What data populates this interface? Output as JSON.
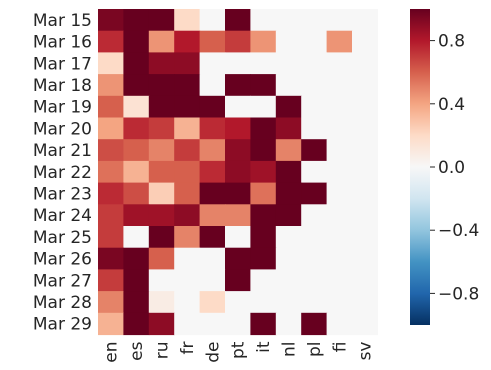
{
  "chart_data": {
    "type": "heatmap",
    "title": "",
    "xlabel": "",
    "ylabel": "",
    "x": [
      "en",
      "es",
      "ru",
      "fr",
      "de",
      "pt",
      "it",
      "nl",
      "pl",
      "fi",
      "sv"
    ],
    "y": [
      "Mar 15",
      "Mar 16",
      "Mar 17",
      "Mar 18",
      "Mar 19",
      "Mar 20",
      "Mar 21",
      "Mar 22",
      "Mar 23",
      "Mar 24",
      "Mar 25",
      "Mar 26",
      "Mar 27",
      "Mar 28",
      "Mar 29"
    ],
    "values": [
      [
        0.95,
        1.0,
        1.0,
        0.2,
        null,
        1.0,
        null,
        null,
        null,
        null,
        null
      ],
      [
        0.75,
        1.0,
        0.45,
        0.8,
        0.6,
        0.7,
        0.45,
        null,
        null,
        0.45,
        null
      ],
      [
        0.2,
        1.0,
        0.9,
        0.9,
        null,
        null,
        null,
        null,
        null,
        null,
        null
      ],
      [
        0.45,
        1.0,
        1.0,
        1.0,
        null,
        1.0,
        1.0,
        null,
        null,
        null,
        null
      ],
      [
        0.6,
        0.15,
        1.0,
        1.0,
        1.0,
        null,
        null,
        1.0,
        null,
        null,
        null
      ],
      [
        0.4,
        0.75,
        0.7,
        0.35,
        0.75,
        0.8,
        1.0,
        0.9,
        null,
        null,
        null
      ],
      [
        0.65,
        0.6,
        0.5,
        0.7,
        0.5,
        0.9,
        1.0,
        0.5,
        1.0,
        null,
        null
      ],
      [
        0.55,
        0.35,
        0.6,
        0.6,
        0.75,
        0.9,
        0.85,
        1.0,
        null,
        null,
        null
      ],
      [
        0.75,
        0.65,
        0.25,
        0.6,
        1.0,
        1.0,
        0.55,
        1.0,
        1.0,
        null,
        null
      ],
      [
        0.7,
        0.85,
        0.85,
        0.9,
        0.5,
        0.5,
        1.0,
        1.0,
        null,
        null,
        null
      ],
      [
        0.7,
        null,
        1.0,
        0.5,
        1.0,
        null,
        1.0,
        null,
        null,
        null,
        null
      ],
      [
        0.95,
        1.0,
        0.6,
        null,
        null,
        1.0,
        1.0,
        null,
        null,
        null,
        null
      ],
      [
        0.7,
        1.0,
        null,
        null,
        null,
        1.0,
        null,
        null,
        null,
        null,
        null
      ],
      [
        0.5,
        1.0,
        0.08,
        null,
        0.2,
        null,
        null,
        null,
        null,
        null,
        null
      ],
      [
        0.35,
        1.0,
        0.9,
        null,
        null,
        null,
        1.0,
        null,
        1.0,
        null,
        null
      ]
    ],
    "vmin": -1,
    "vmax": 1,
    "colormap": "RdBu_r",
    "colorbar_ticks": [
      "0.8",
      "0.4",
      "0.0",
      "−0.4",
      "−0.8"
    ],
    "colorbar_tick_values": [
      0.8,
      0.4,
      0.0,
      -0.4,
      -0.8
    ],
    "missing_color": "#f7f7f7",
    "grid": false,
    "legend": "colorbar-right"
  }
}
